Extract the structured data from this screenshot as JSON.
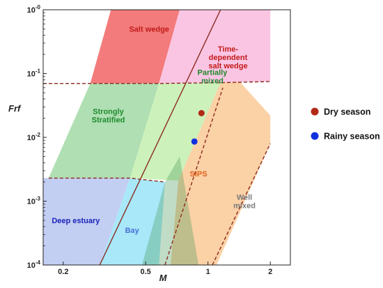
{
  "chart_data": {
    "type": "scatter",
    "xlabel": "M",
    "ylabel": "Frf",
    "x_scale": "log",
    "y_scale": "log",
    "xlim": [
      0.16,
      2.5
    ],
    "ylim": [
      0.0001,
      1
    ],
    "x_ticks": [
      {
        "value": 0.2,
        "label": "0.2"
      },
      {
        "value": 0.5,
        "label": "0.5"
      },
      {
        "value": 1,
        "label": "1"
      },
      {
        "value": 2,
        "label": "2"
      }
    ],
    "y_ticks": [
      {
        "value": 0.0001,
        "base": "10",
        "exp": "-4"
      },
      {
        "value": 0.001,
        "base": "10",
        "exp": "-3"
      },
      {
        "value": 0.01,
        "base": "10",
        "exp": "-2"
      },
      {
        "value": 0.1,
        "base": "10",
        "exp": "-1"
      },
      {
        "value": 1,
        "base": "10",
        "exp": "-0"
      }
    ],
    "regions": [
      {
        "label": [
          "Salt wedge"
        ],
        "color": "#f26d6d",
        "label_color": "#c21a1a",
        "label_at": [
          0.52,
          0.5
        ],
        "polygon": [
          [
            0.27,
            0.07
          ],
          [
            0.34,
            1
          ],
          [
            0.73,
            1
          ],
          [
            0.58,
            0.07
          ]
        ]
      },
      {
        "label": [
          "Time-",
          "dependent",
          "salt wedge"
        ],
        "color": "#f9bfe0",
        "label_color": "#c21a1a",
        "label_at": [
          1.25,
          0.18
        ],
        "polygon": [
          [
            0.73,
            1
          ],
          [
            2.0,
            1
          ],
          [
            2.0,
            0.075
          ],
          [
            0.58,
            0.07
          ]
        ]
      },
      {
        "label": [
          "Strongly",
          "Stratified"
        ],
        "color": "#a6dcaa",
        "label_color": "#1e8a2c",
        "label_at": [
          0.33,
          0.022
        ],
        "polygon": [
          [
            0.17,
            0.0023
          ],
          [
            0.27,
            0.07
          ],
          [
            0.58,
            0.07
          ],
          [
            0.42,
            0.0023
          ]
        ]
      },
      {
        "label": [
          "Partially",
          "mixed"
        ],
        "color": "#c6f0b2",
        "label_color": "#1e8a2c",
        "label_at": [
          1.05,
          0.09
        ],
        "polygon": [
          [
            0.42,
            0.0023
          ],
          [
            0.58,
            0.07
          ],
          [
            1.15,
            0.072
          ],
          [
            0.72,
            0.0021
          ]
        ]
      },
      {
        "label": [
          "SIPS"
        ],
        "color": "#fbcc9c",
        "label_color": "#e2621b",
        "label_at": [
          0.9,
          0.0027
        ],
        "polygon": [
          [
            0.72,
            0.0021
          ],
          [
            1.15,
            0.072
          ],
          [
            1.42,
            0.075
          ],
          [
            2.0,
            0.022
          ],
          [
            2.0,
            0.008
          ],
          [
            1.1,
            0.0001
          ],
          [
            0.66,
            0.0001
          ]
        ]
      },
      {
        "label": [
          "Deep estuary"
        ],
        "color": "#bcc9f2",
        "label_color": "#1a23b8",
        "label_at": [
          0.23,
          0.0005
        ],
        "polygon": [
          [
            0.16,
            0.0001
          ],
          [
            0.16,
            0.0023
          ],
          [
            0.42,
            0.0023
          ],
          [
            0.3,
            0.0001
          ]
        ]
      },
      {
        "label": [
          "Bay"
        ],
        "color": "#9ee5f8",
        "label_color": "#4a6ed6",
        "label_at": [
          0.43,
          0.00035
        ],
        "polygon": [
          [
            0.3,
            0.0001
          ],
          [
            0.42,
            0.0023
          ],
          [
            0.62,
            0.002
          ],
          [
            0.58,
            0.0001
          ]
        ]
      },
      {
        "label": [
          "Well",
          "mixed"
        ],
        "color": "none",
        "label_color": "#7a7a7a",
        "label_at": [
          1.5,
          0.001
        ],
        "polygon": []
      }
    ],
    "overlays": [
      {
        "color": "#4e9a5c",
        "opacity": 0.35,
        "polygon": [
          [
            0.48,
            0.0001
          ],
          [
            0.55,
            0.0001
          ],
          [
            0.9,
            0.0001
          ],
          [
            0.73,
            0.005
          ],
          [
            0.62,
            0.002
          ]
        ]
      }
    ],
    "boundaries": [
      {
        "style": "solid",
        "color": "#8b2a1e",
        "points": [
          [
            0.3,
            0.0001
          ],
          [
            1.15,
            1
          ]
        ]
      },
      {
        "style": "dashed",
        "color": "#8b2a1e",
        "points": [
          [
            0.16,
            0.07
          ],
          [
            0.27,
            0.07
          ],
          [
            0.58,
            0.07
          ],
          [
            1.15,
            0.072
          ],
          [
            2.0,
            0.075
          ]
        ]
      },
      {
        "style": "dashed",
        "color": "#8b2a1e",
        "points": [
          [
            0.17,
            0.0023
          ],
          [
            0.42,
            0.0023
          ],
          [
            0.62,
            0.002
          ]
        ]
      },
      {
        "style": "dashed",
        "color": "#8b2a1e",
        "points": [
          [
            0.62,
            0.0001
          ],
          [
            1.18,
            0.06
          ]
        ]
      },
      {
        "style": "dashed",
        "color": "#8b2a1e",
        "points": [
          [
            1.05,
            0.0001
          ],
          [
            2.0,
            0.008
          ]
        ]
      }
    ],
    "series": [
      {
        "name": "Dry season",
        "color": "#b22a16",
        "points": [
          [
            0.93,
            0.024
          ]
        ]
      },
      {
        "name": "Rainy season",
        "color": "#1130e0",
        "points": [
          [
            0.86,
            0.0086
          ]
        ]
      }
    ]
  }
}
